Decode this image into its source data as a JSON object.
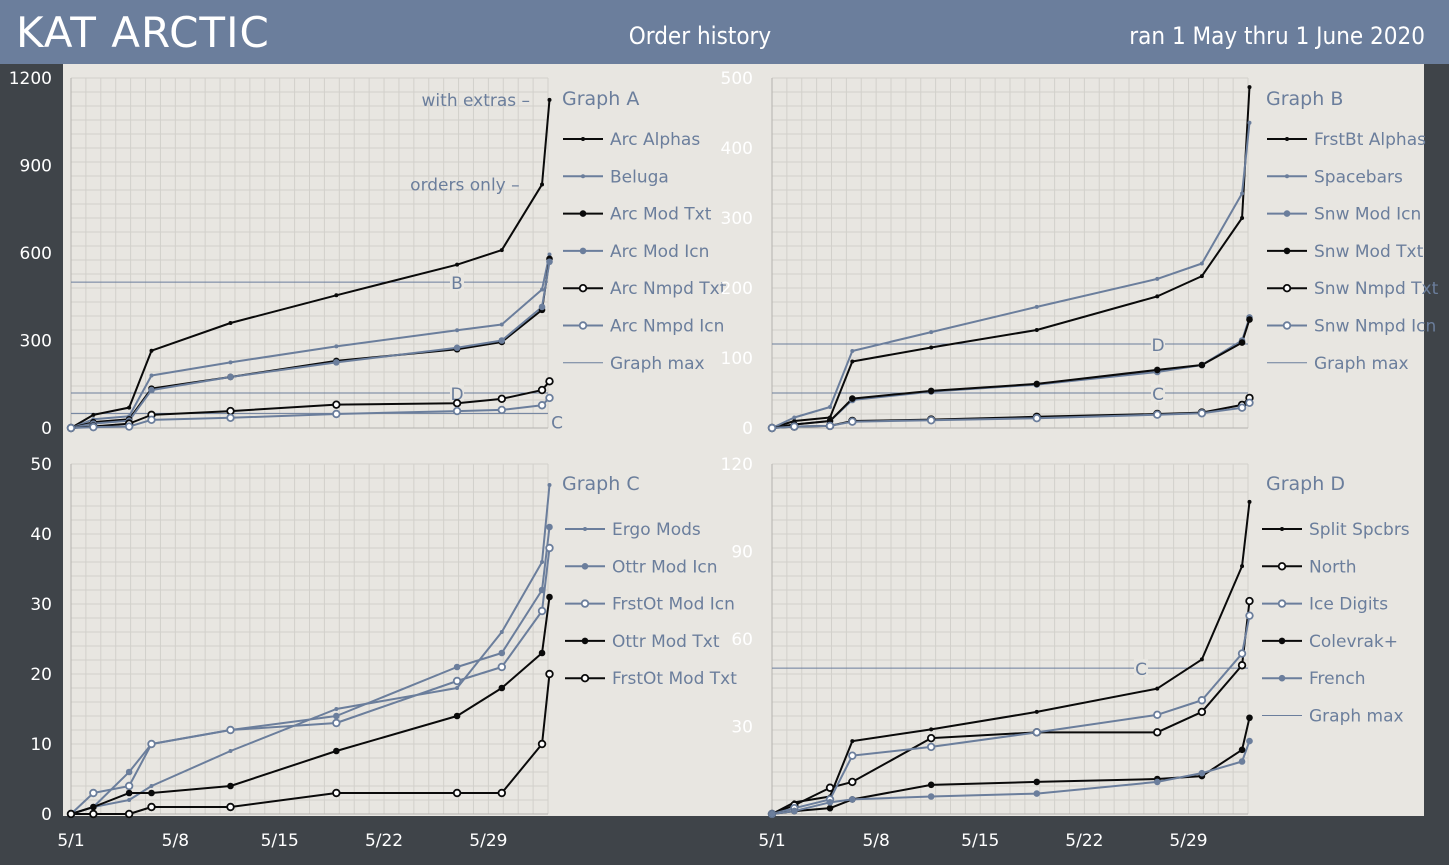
{
  "header": {
    "brand": "KAT ARCTIC",
    "title": "Order history",
    "date_range": "ran 1 May thru 1 June 2020"
  },
  "colors": {
    "black": "#0a0a0a",
    "blue": "#6b7e9c",
    "panel": "#e8e6e1",
    "background": "#3f4449",
    "header": "#6b7e9c"
  },
  "chart_data": [
    {
      "type": "line",
      "title": "Graph A",
      "x_ticks": [
        "5/1",
        "5/8",
        "5/15",
        "5/22",
        "5/29"
      ],
      "y_ticks": [
        "0",
        "300",
        "600",
        "900",
        "1200"
      ],
      "xlim": [
        0,
        32
      ],
      "ylim": [
        0,
        1200
      ],
      "annotations": [
        {
          "text": "with extras –",
          "x": 31.2,
          "y": 1125
        },
        {
          "text": "orders only –",
          "x": 30.5,
          "y": 835
        }
      ],
      "reference_lines": [
        {
          "label": "B",
          "y": 500
        },
        {
          "label": "D",
          "y": 120
        },
        {
          "label": "C",
          "y": 50
        }
      ],
      "series": [
        {
          "name": "Arc Alphas",
          "color": "#0a0a0a",
          "marker": "dot-small",
          "x": [
            0,
            1.5,
            3.9,
            5.4,
            10.7,
            17.8,
            25.9,
            28.9,
            31.6,
            32.1
          ],
          "y": [
            0,
            45,
            70,
            265,
            360,
            455,
            560,
            610,
            835,
            1125
          ]
        },
        {
          "name": "Beluga",
          "color": "#6b7e9c",
          "marker": "dot-small",
          "x": [
            0,
            1.5,
            3.9,
            5.4,
            10.7,
            17.8,
            25.9,
            28.9,
            31.6,
            32.1
          ],
          "y": [
            0,
            30,
            40,
            180,
            225,
            280,
            335,
            355,
            475,
            595
          ]
        },
        {
          "name": "Arc Mod Txt",
          "color": "#0a0a0a",
          "marker": "dot",
          "x": [
            0,
            1.5,
            3.9,
            5.4,
            10.7,
            17.8,
            25.9,
            28.9,
            31.6,
            32.1
          ],
          "y": [
            0,
            20,
            30,
            135,
            175,
            230,
            270,
            295,
            405,
            580
          ]
        },
        {
          "name": "Arc Mod Icn",
          "color": "#6b7e9c",
          "marker": "dot",
          "x": [
            0,
            1.5,
            3.9,
            5.4,
            10.7,
            17.8,
            25.9,
            28.9,
            31.6,
            32.1
          ],
          "y": [
            0,
            15,
            25,
            130,
            175,
            225,
            275,
            300,
            415,
            570
          ]
        },
        {
          "name": "Arc Nmpd Txt",
          "color": "#0a0a0a",
          "marker": "circle",
          "x": [
            0,
            1.5,
            3.9,
            5.4,
            10.7,
            17.8,
            25.9,
            28.9,
            31.6,
            32.1
          ],
          "y": [
            0,
            5,
            15,
            45,
            58,
            80,
            85,
            100,
            130,
            160
          ]
        },
        {
          "name": "Arc Nmpd Icn",
          "color": "#6b7e9c",
          "marker": "circle",
          "x": [
            0,
            1.5,
            3.9,
            5.4,
            10.7,
            17.8,
            25.9,
            28.9,
            31.6,
            32.1
          ],
          "y": [
            0,
            3,
            5,
            28,
            35,
            48,
            58,
            62,
            78,
            103
          ]
        },
        {
          "name": "Graph max",
          "color": "#6b7e9c",
          "marker": "none",
          "x": [],
          "y": []
        }
      ]
    },
    {
      "type": "line",
      "title": "Graph B",
      "x_ticks": [
        "5/1",
        "5/8",
        "5/15",
        "5/22",
        "5/29"
      ],
      "y_ticks": [
        "0",
        "100",
        "200",
        "300",
        "400",
        "500"
      ],
      "xlim": [
        0,
        32
      ],
      "ylim": [
        0,
        500
      ],
      "reference_lines": [
        {
          "label": "D",
          "y": 120
        },
        {
          "label": "C",
          "y": 50
        }
      ],
      "series": [
        {
          "name": "FrstBt Alphas",
          "color": "#0a0a0a",
          "marker": "dot-small",
          "x": [
            0,
            1.5,
            3.9,
            5.4,
            10.7,
            17.8,
            25.9,
            28.9,
            31.6,
            32.1
          ],
          "y": [
            0,
            10,
            15,
            95,
            115,
            140,
            188,
            217,
            300,
            487
          ]
        },
        {
          "name": "Spacebars",
          "color": "#6b7e9c",
          "marker": "dot-small",
          "x": [
            0,
            1.5,
            3.9,
            5.4,
            10.7,
            17.8,
            25.9,
            28.9,
            31.6,
            32.1
          ],
          "y": [
            0,
            15,
            30,
            110,
            137,
            173,
            213,
            235,
            335,
            436
          ]
        },
        {
          "name": "Snw Mod Icn",
          "color": "#6b7e9c",
          "marker": "dot",
          "x": [
            0,
            1.5,
            3.9,
            5.4,
            10.7,
            17.8,
            25.9,
            28.9,
            31.6,
            32.1
          ],
          "y": [
            0,
            5,
            10,
            40,
            52,
            62,
            80,
            90,
            125,
            158
          ]
        },
        {
          "name": "Snw Mod Txt",
          "color": "#0a0a0a",
          "marker": "dot",
          "x": [
            0,
            1.5,
            3.9,
            5.4,
            10.7,
            17.8,
            25.9,
            28.9,
            31.6,
            32.1
          ],
          "y": [
            0,
            5,
            10,
            42,
            53,
            63,
            83,
            90,
            122,
            155
          ]
        },
        {
          "name": "Snw Nmpd Txt",
          "color": "#0a0a0a",
          "marker": "circle",
          "x": [
            0,
            1.5,
            3.9,
            5.4,
            10.7,
            17.8,
            25.9,
            28.9,
            31.6,
            32.1
          ],
          "y": [
            0,
            2,
            3,
            10,
            12,
            16,
            20,
            22,
            33,
            43
          ]
        },
        {
          "name": "Snw Nmpd Icn",
          "color": "#6b7e9c",
          "marker": "circle",
          "x": [
            0,
            1.5,
            3.9,
            5.4,
            10.7,
            17.8,
            25.9,
            28.9,
            31.6,
            32.1
          ],
          "y": [
            0,
            2,
            3,
            9,
            11,
            14,
            19,
            21,
            29,
            36
          ]
        },
        {
          "name": "Graph max",
          "color": "#6b7e9c",
          "marker": "none",
          "x": [],
          "y": []
        }
      ]
    },
    {
      "type": "line",
      "title": "Graph C",
      "x_ticks": [
        "5/1",
        "5/8",
        "5/15",
        "5/22",
        "5/29"
      ],
      "y_ticks": [
        "0",
        "10",
        "20",
        "30",
        "40",
        "50"
      ],
      "xlim": [
        0,
        32
      ],
      "ylim": [
        0,
        50
      ],
      "reference_lines": [],
      "series": [
        {
          "name": "Ergo Mods",
          "color": "#6b7e9c",
          "marker": "dot-small",
          "x": [
            0,
            1.5,
            3.9,
            5.4,
            10.7,
            17.8,
            25.9,
            28.9,
            31.6,
            32.1
          ],
          "y": [
            0,
            1,
            2,
            4,
            9,
            15,
            18,
            26,
            36,
            47
          ]
        },
        {
          "name": "Ottr Mod Icn",
          "color": "#6b7e9c",
          "marker": "dot",
          "x": [
            0,
            1.5,
            3.9,
            5.4,
            10.7,
            17.8,
            25.9,
            28.9,
            31.6,
            32.1
          ],
          "y": [
            0,
            1,
            6,
            10,
            12,
            14,
            21,
            23,
            32,
            41
          ]
        },
        {
          "name": "FrstOt Mod Icn",
          "color": "#6b7e9c",
          "marker": "circle",
          "x": [
            0,
            1.5,
            3.9,
            5.4,
            10.7,
            17.8,
            25.9,
            28.9,
            31.6,
            32.1
          ],
          "y": [
            0,
            3,
            4,
            10,
            12,
            13,
            19,
            21,
            29,
            38
          ]
        },
        {
          "name": "Ottr Mod Txt",
          "color": "#0a0a0a",
          "marker": "dot",
          "x": [
            0,
            1.5,
            3.9,
            5.4,
            10.7,
            17.8,
            25.9,
            28.9,
            31.6,
            32.1
          ],
          "y": [
            0,
            1,
            3,
            3,
            4,
            9,
            14,
            18,
            23,
            31
          ]
        },
        {
          "name": "FrstOt Mod Txt",
          "color": "#0a0a0a",
          "marker": "circle",
          "x": [
            0,
            1.5,
            3.9,
            5.4,
            10.7,
            17.8,
            25.9,
            28.9,
            31.6,
            32.1
          ],
          "y": [
            0,
            0,
            0,
            1,
            1,
            3,
            3,
            3,
            10,
            20
          ]
        }
      ]
    },
    {
      "type": "line",
      "title": "Graph D",
      "x_ticks": [
        "5/1",
        "5/8",
        "5/15",
        "5/22",
        "5/29"
      ],
      "y_ticks": [
        "30",
        "60",
        "90",
        "120"
      ],
      "xlim": [
        0,
        32
      ],
      "ylim": [
        0,
        120
      ],
      "reference_lines": [
        {
          "label": "C",
          "y": 50
        }
      ],
      "series": [
        {
          "name": "Split Spcbrs",
          "color": "#0a0a0a",
          "marker": "dot-small",
          "x": [
            0,
            1.5,
            3.9,
            5.4,
            10.7,
            17.8,
            25.9,
            28.9,
            31.6,
            32.1
          ],
          "y": [
            0,
            4,
            6,
            25,
            29,
            35,
            43,
            53,
            85,
            107
          ]
        },
        {
          "name": "North",
          "color": "#0a0a0a",
          "marker": "circle",
          "x": [
            0,
            1.5,
            3.9,
            5.4,
            10.7,
            17.8,
            25.9,
            28.9,
            31.6,
            32.1
          ],
          "y": [
            0,
            3,
            9,
            11,
            26,
            28,
            28,
            35,
            51,
            73
          ]
        },
        {
          "name": "Ice Digits",
          "color": "#6b7e9c",
          "marker": "circle",
          "x": [
            0,
            1.5,
            3.9,
            5.4,
            10.7,
            17.8,
            25.9,
            28.9,
            31.6,
            32.1
          ],
          "y": [
            0,
            2,
            5,
            20,
            23,
            28,
            34,
            39,
            55,
            68
          ]
        },
        {
          "name": "Colevrak+",
          "color": "#0a0a0a",
          "marker": "dot",
          "x": [
            0,
            1.5,
            3.9,
            5.4,
            10.7,
            17.8,
            25.9,
            28.9,
            31.6,
            32.1
          ],
          "y": [
            0,
            1,
            2,
            5,
            10,
            11,
            12,
            13,
            22,
            33
          ]
        },
        {
          "name": "French",
          "color": "#6b7e9c",
          "marker": "dot",
          "x": [
            0,
            1.5,
            3.9,
            5.4,
            10.7,
            17.8,
            25.9,
            28.9,
            31.6,
            32.1
          ],
          "y": [
            0,
            1,
            4,
            5,
            6,
            7,
            11,
            14,
            18,
            25
          ]
        },
        {
          "name": "Graph max",
          "color": "#6b7e9c",
          "marker": "none",
          "x": [],
          "y": []
        }
      ]
    }
  ]
}
